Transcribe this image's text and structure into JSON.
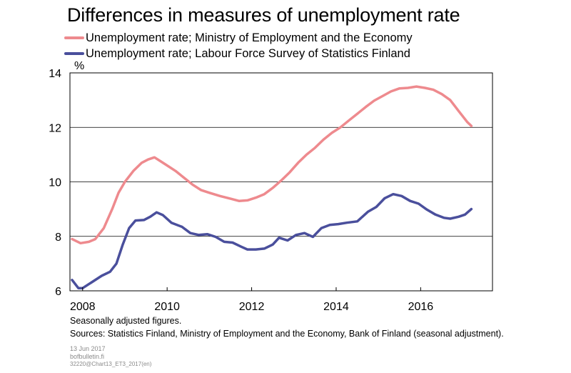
{
  "chart_data": {
    "type": "line",
    "title": "Differences in measures of unemployment rate",
    "ylabel": "%",
    "ylim": [
      6,
      14
    ],
    "xlim": [
      2007.7,
      2017.7
    ],
    "yticks": [
      6,
      8,
      10,
      12,
      14
    ],
    "xticks": [
      2008,
      2010,
      2012,
      2014,
      2016
    ],
    "grid": "horizontal",
    "legend": "top-left",
    "series": [
      {
        "name": "Unemployment rate; Ministry of Employment and the Economy",
        "color": "#ee8a8e",
        "points": [
          [
            2007.75,
            7.9
          ],
          [
            2007.95,
            7.75
          ],
          [
            2008.15,
            7.8
          ],
          [
            2008.3,
            7.9
          ],
          [
            2008.5,
            8.3
          ],
          [
            2008.7,
            9.0
          ],
          [
            2008.85,
            9.6
          ],
          [
            2009.0,
            10.0
          ],
          [
            2009.2,
            10.4
          ],
          [
            2009.4,
            10.7
          ],
          [
            2009.55,
            10.82
          ],
          [
            2009.7,
            10.9
          ],
          [
            2009.85,
            10.75
          ],
          [
            2010.0,
            10.6
          ],
          [
            2010.2,
            10.4
          ],
          [
            2010.4,
            10.15
          ],
          [
            2010.6,
            9.9
          ],
          [
            2010.8,
            9.7
          ],
          [
            2011.0,
            9.6
          ],
          [
            2011.25,
            9.48
          ],
          [
            2011.5,
            9.38
          ],
          [
            2011.7,
            9.3
          ],
          [
            2011.9,
            9.32
          ],
          [
            2012.1,
            9.42
          ],
          [
            2012.3,
            9.55
          ],
          [
            2012.5,
            9.78
          ],
          [
            2012.7,
            10.05
          ],
          [
            2012.9,
            10.35
          ],
          [
            2013.1,
            10.7
          ],
          [
            2013.3,
            11.0
          ],
          [
            2013.5,
            11.25
          ],
          [
            2013.7,
            11.55
          ],
          [
            2013.9,
            11.8
          ],
          [
            2014.1,
            12.0
          ],
          [
            2014.3,
            12.25
          ],
          [
            2014.5,
            12.5
          ],
          [
            2014.7,
            12.75
          ],
          [
            2014.9,
            12.98
          ],
          [
            2015.1,
            13.15
          ],
          [
            2015.3,
            13.32
          ],
          [
            2015.5,
            13.43
          ],
          [
            2015.7,
            13.45
          ],
          [
            2015.9,
            13.5
          ],
          [
            2016.1,
            13.45
          ],
          [
            2016.3,
            13.38
          ],
          [
            2016.5,
            13.22
          ],
          [
            2016.7,
            13.0
          ],
          [
            2016.9,
            12.6
          ],
          [
            2017.1,
            12.2
          ],
          [
            2017.2,
            12.05
          ]
        ]
      },
      {
        "name": "Unemployment rate; Labour Force Survey of Statistics Finland",
        "color": "#4a4f9c",
        "points": [
          [
            2007.75,
            6.4
          ],
          [
            2007.9,
            6.1
          ],
          [
            2008.0,
            6.1
          ],
          [
            2008.2,
            6.3
          ],
          [
            2008.45,
            6.55
          ],
          [
            2008.65,
            6.7
          ],
          [
            2008.8,
            7.0
          ],
          [
            2008.95,
            7.7
          ],
          [
            2009.1,
            8.3
          ],
          [
            2009.25,
            8.58
          ],
          [
            2009.45,
            8.6
          ],
          [
            2009.6,
            8.72
          ],
          [
            2009.75,
            8.88
          ],
          [
            2009.9,
            8.78
          ],
          [
            2010.1,
            8.5
          ],
          [
            2010.35,
            8.35
          ],
          [
            2010.55,
            8.12
          ],
          [
            2010.75,
            8.05
          ],
          [
            2010.95,
            8.08
          ],
          [
            2011.15,
            7.98
          ],
          [
            2011.35,
            7.8
          ],
          [
            2011.55,
            7.77
          ],
          [
            2011.75,
            7.62
          ],
          [
            2011.9,
            7.52
          ],
          [
            2012.1,
            7.52
          ],
          [
            2012.3,
            7.55
          ],
          [
            2012.5,
            7.7
          ],
          [
            2012.65,
            7.95
          ],
          [
            2012.85,
            7.85
          ],
          [
            2013.05,
            8.05
          ],
          [
            2013.25,
            8.12
          ],
          [
            2013.45,
            7.98
          ],
          [
            2013.65,
            8.3
          ],
          [
            2013.85,
            8.42
          ],
          [
            2014.05,
            8.45
          ],
          [
            2014.25,
            8.5
          ],
          [
            2014.5,
            8.55
          ],
          [
            2014.75,
            8.9
          ],
          [
            2014.95,
            9.08
          ],
          [
            2015.15,
            9.4
          ],
          [
            2015.35,
            9.55
          ],
          [
            2015.55,
            9.48
          ],
          [
            2015.75,
            9.3
          ],
          [
            2015.95,
            9.2
          ],
          [
            2016.15,
            8.98
          ],
          [
            2016.35,
            8.8
          ],
          [
            2016.55,
            8.68
          ],
          [
            2016.7,
            8.65
          ],
          [
            2016.9,
            8.72
          ],
          [
            2017.05,
            8.8
          ],
          [
            2017.2,
            9.0
          ]
        ]
      }
    ]
  },
  "footer": {
    "note": "Seasonally adjusted figures.",
    "sources": "Sources: Statistics Finland, Ministry of Employment and the Economy, Bank of Finland (seasonal adjustment).",
    "date": "13 Jun 2017",
    "site": "bofbulletin.fi",
    "code": "32220@Chart13_ET3_2017(en)"
  }
}
